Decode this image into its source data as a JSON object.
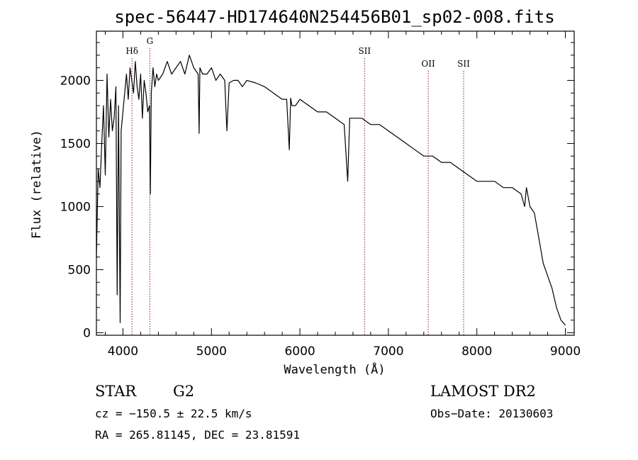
{
  "chart_data": {
    "type": "line",
    "title": "spec-56447-HD174640N254456B01_sp02-008.fits",
    "xlabel": "Wavelength (Å)",
    "ylabel": "Flux (relative)",
    "xlim": [
      3700,
      9100
    ],
    "ylim": [
      -20,
      2390
    ],
    "x_ticks": [
      4000,
      5000,
      6000,
      7000,
      8000,
      9000
    ],
    "x_tick_labels": [
      "4000",
      "5000",
      "6000",
      "7000",
      "8000",
      "9000"
    ],
    "y_ticks": [
      0,
      500,
      1000,
      1500,
      2000
    ],
    "y_tick_labels": [
      "0",
      "500",
      "1000",
      "1500",
      "2000"
    ],
    "line_color": "#000000",
    "marker_color": "#8b1a1a",
    "spectral_lines": [
      {
        "label": "Hδ",
        "wavelength": 4102,
        "label_flux": 2210
      },
      {
        "label": "G",
        "wavelength": 4304,
        "label_flux": 2290
      },
      {
        "label": "SII",
        "wavelength": 6731,
        "label_flux": 2210
      },
      {
        "label": "OII",
        "wavelength": 7450,
        "label_flux": 2110
      },
      {
        "label": "SII",
        "wavelength": 7850,
        "label_flux": 2110
      }
    ],
    "series": [
      {
        "name": "flux",
        "x": [
          3700,
          3720,
          3740,
          3760,
          3780,
          3800,
          3820,
          3840,
          3860,
          3880,
          3900,
          3920,
          3935,
          3950,
          3968,
          3980,
          4000,
          4020,
          4040,
          4060,
          4080,
          4100,
          4120,
          4140,
          4160,
          4180,
          4200,
          4220,
          4240,
          4260,
          4280,
          4300,
          4310,
          4320,
          4340,
          4360,
          4380,
          4400,
          4450,
          4500,
          4550,
          4600,
          4650,
          4700,
          4750,
          4800,
          4850,
          4861,
          4870,
          4900,
          4950,
          5000,
          5050,
          5100,
          5150,
          5175,
          5200,
          5250,
          5300,
          5350,
          5400,
          5500,
          5600,
          5700,
          5800,
          5850,
          5880,
          5895,
          5910,
          5950,
          6000,
          6100,
          6200,
          6300,
          6400,
          6500,
          6540,
          6563,
          6580,
          6600,
          6700,
          6800,
          6900,
          7000,
          7100,
          7200,
          7300,
          7400,
          7500,
          7600,
          7700,
          7800,
          7900,
          8000,
          8100,
          8200,
          8300,
          8400,
          8500,
          8540,
          8560,
          8600,
          8650,
          8700,
          8750,
          8800,
          8850,
          8900,
          8950,
          9000
        ],
        "values": [
          600,
          1300,
          1150,
          1500,
          1800,
          1250,
          2050,
          1550,
          1850,
          1600,
          1700,
          1950,
          300,
          1800,
          80,
          1600,
          1750,
          1900,
          2050,
          1850,
          2100,
          2000,
          1900,
          2150,
          1950,
          1850,
          2050,
          1700,
          2000,
          1900,
          1750,
          1800,
          1100,
          1900,
          2100,
          1950,
          2050,
          2000,
          2050,
          2150,
          2050,
          2100,
          2150,
          2050,
          2200,
          2100,
          2050,
          1580,
          2100,
          2050,
          2050,
          2100,
          2000,
          2050,
          2000,
          1600,
          1980,
          2000,
          2000,
          1950,
          2000,
          1980,
          1950,
          1900,
          1850,
          1850,
          1450,
          1860,
          1800,
          1800,
          1850,
          1800,
          1750,
          1750,
          1700,
          1650,
          1200,
          1700,
          1700,
          1700,
          1700,
          1650,
          1650,
          1600,
          1550,
          1500,
          1450,
          1400,
          1400,
          1350,
          1350,
          1300,
          1250,
          1200,
          1200,
          1200,
          1150,
          1150,
          1100,
          1000,
          1150,
          1000,
          950,
          750,
          550,
          450,
          350,
          200,
          100,
          60
        ]
      }
    ]
  },
  "info": {
    "object_class": "STAR",
    "subclass": "G2",
    "survey": "LAMOST DR2",
    "redshift": "cz = −150.5 ± 22.5 km/s",
    "obs_date": "Obs−Date: 20130603",
    "coords": "RA = 265.81145, DEC =  23.81591"
  }
}
